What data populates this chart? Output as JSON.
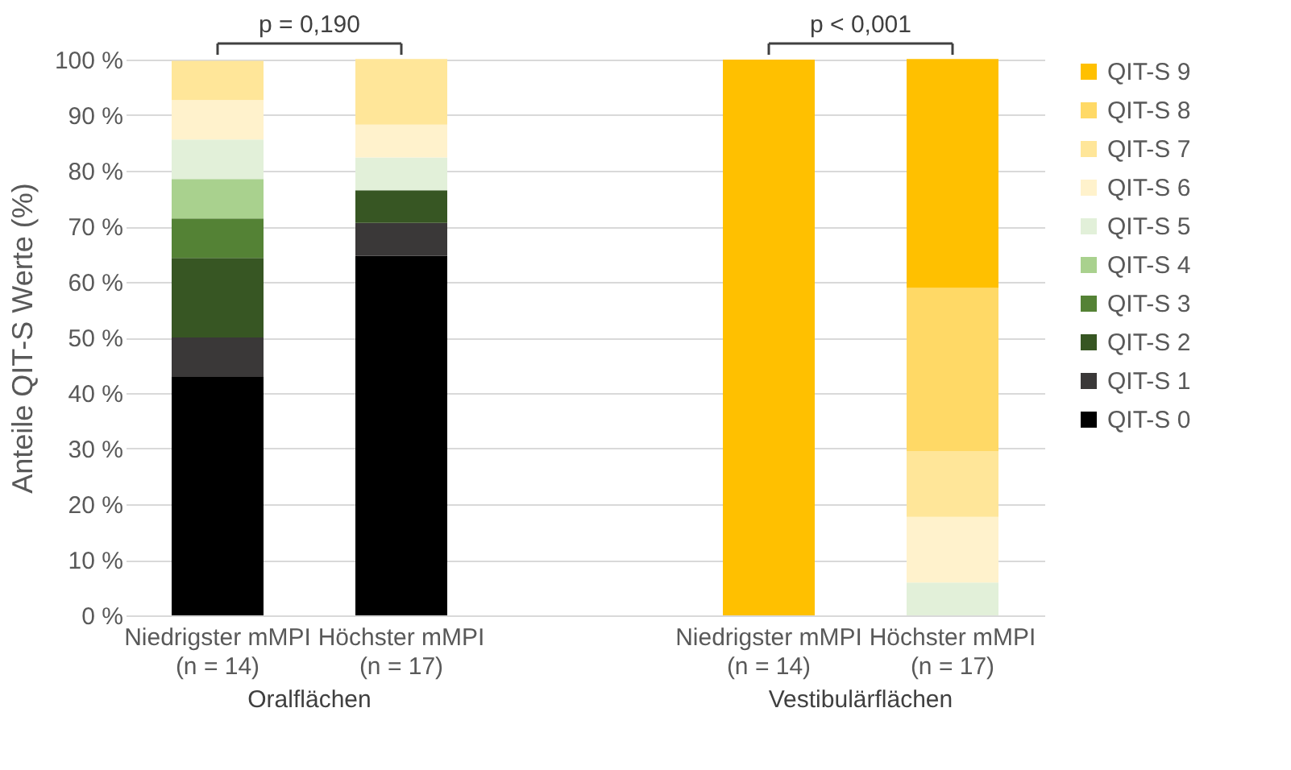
{
  "chart_data": {
    "type": "bar",
    "stacked": true,
    "ylabel": "Anteile QIT-S Werte (%)",
    "categories": [
      "Niedrigster mMPI\n(n = 14)",
      "Höchster mMPI\n(n = 17)",
      null,
      "Niedrigster mMPI\n(n = 14)",
      "Höchster mMPI\n(n = 17)"
    ],
    "series": [
      {
        "name": "QIT-S 0",
        "color": "#000000",
        "values": [
          42.9,
          64.7,
          null,
          0,
          0
        ]
      },
      {
        "name": "QIT-S 1",
        "color": "#3a3838",
        "values": [
          7.1,
          5.9,
          null,
          0,
          0
        ]
      },
      {
        "name": "QIT-S 2",
        "color": "#375623",
        "values": [
          14.3,
          5.9,
          null,
          0,
          0
        ]
      },
      {
        "name": "QIT-S 3",
        "color": "#548235",
        "values": [
          7.1,
          0,
          null,
          0,
          0
        ]
      },
      {
        "name": "QIT-S 4",
        "color": "#a9d18e",
        "values": [
          7.1,
          0,
          null,
          0,
          0
        ]
      },
      {
        "name": "QIT-S 5",
        "color": "#e2f0d9",
        "values": [
          7.1,
          5.9,
          null,
          0,
          5.9
        ]
      },
      {
        "name": "QIT-S 6",
        "color": "#fff2cc",
        "values": [
          7.1,
          5.9,
          null,
          0,
          11.8
        ]
      },
      {
        "name": "QIT-S 7",
        "color": "#ffe699",
        "values": [
          7.1,
          11.8,
          null,
          0,
          11.8
        ]
      },
      {
        "name": "QIT-S 8",
        "color": "#ffd966",
        "values": [
          0,
          0,
          null,
          0,
          29.4
        ]
      },
      {
        "name": "QIT-S 9",
        "color": "#ffc000",
        "values": [
          0,
          0,
          null,
          100,
          41.2
        ]
      }
    ],
    "ylim": [
      0,
      100
    ],
    "yticks": [
      {
        "value": 0,
        "label": "0 %"
      },
      {
        "value": 10,
        "label": "10 %"
      },
      {
        "value": 20,
        "label": "20 %"
      },
      {
        "value": 30,
        "label": "30 %"
      },
      {
        "value": 40,
        "label": "40 %"
      },
      {
        "value": 50,
        "label": "50 %"
      },
      {
        "value": 60,
        "label": "60 %"
      },
      {
        "value": 70,
        "label": "70 %"
      },
      {
        "value": 80,
        "label": "80 %"
      },
      {
        "value": 90,
        "label": "90 %"
      },
      {
        "value": 100,
        "label": "100 %"
      }
    ],
    "grid": "y",
    "legend": "right",
    "annotations": [
      "p = 0,190",
      "p < 0,001",
      "Oralflächen",
      "Vestibulärflächen"
    ]
  }
}
